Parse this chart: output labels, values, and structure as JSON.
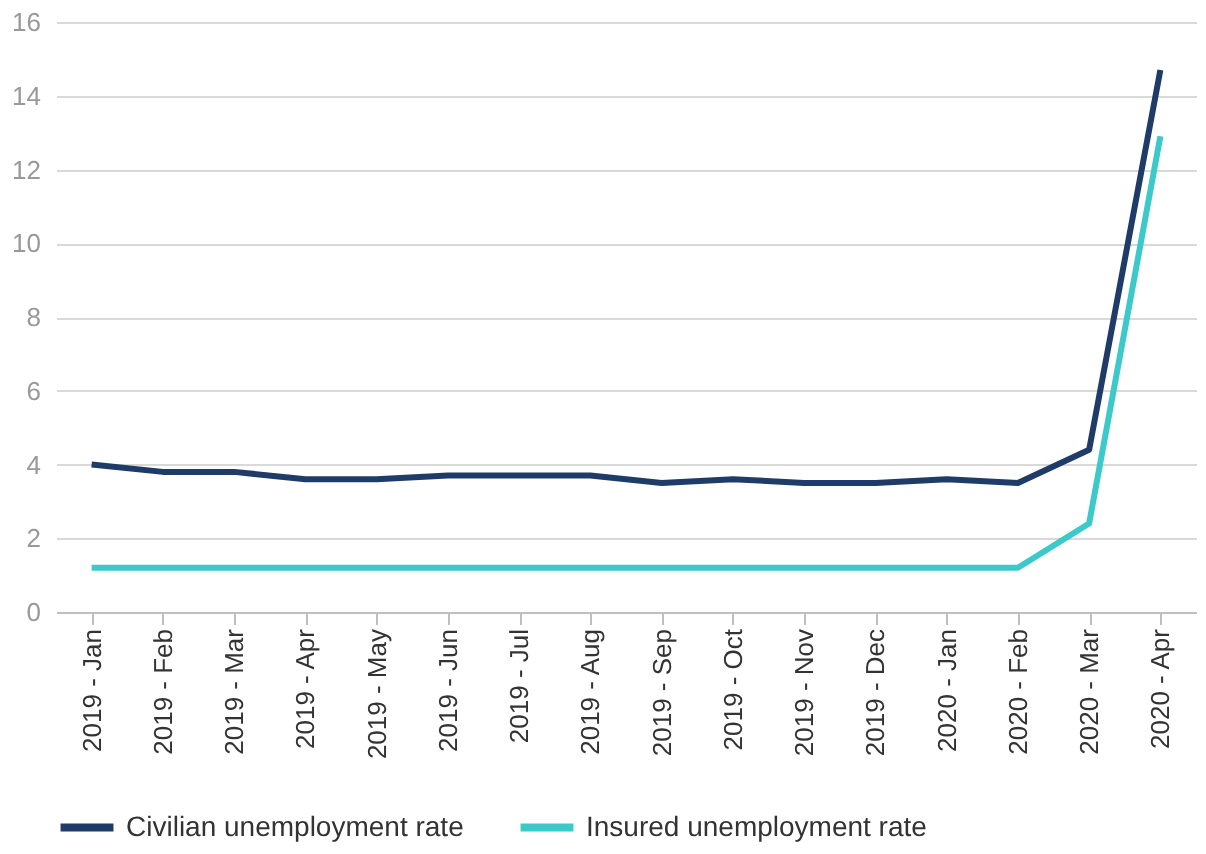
{
  "chart_data": {
    "type": "line",
    "categories": [
      "2019 - Jan",
      "2019 - Feb",
      "2019 - Mar",
      "2019 - Apr",
      "2019 - May",
      "2019 - Jun",
      "2019 - Jul",
      "2019 - Aug",
      "2019 - Sep",
      "2019 - Oct",
      "2019 - Nov",
      "2019 - Dec",
      "2020 - Jan",
      "2020 - Feb",
      "2020 - Mar",
      "2020 - Apr"
    ],
    "series": [
      {
        "name": "Civilian unemployment rate",
        "color": "#1f3c68",
        "values": [
          4.0,
          3.8,
          3.8,
          3.6,
          3.6,
          3.7,
          3.7,
          3.7,
          3.5,
          3.6,
          3.5,
          3.5,
          3.6,
          3.5,
          4.4,
          14.7
        ]
      },
      {
        "name": "Insured unemployment rate",
        "color": "#3cc9c9",
        "values": [
          1.2,
          1.2,
          1.2,
          1.2,
          1.2,
          1.2,
          1.2,
          1.2,
          1.2,
          1.2,
          1.2,
          1.2,
          1.2,
          1.2,
          2.4,
          12.9
        ]
      }
    ],
    "ylim": [
      0,
      16
    ],
    "yticks": [
      0,
      2,
      4,
      6,
      8,
      10,
      12,
      14,
      16
    ],
    "grid": "y",
    "legend": "bottom",
    "marker": "none",
    "line_style": "solid"
  }
}
